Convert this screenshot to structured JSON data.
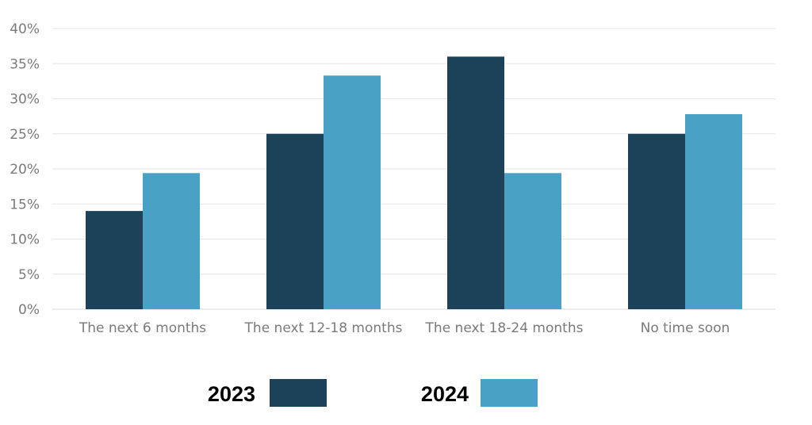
{
  "chart_data": {
    "type": "bar",
    "categories": [
      "The next 6 months",
      "The next 12-18 months",
      "The next 18-24 months",
      "No time soon"
    ],
    "series": [
      {
        "name": "2023",
        "values": [
          14,
          25,
          36,
          25
        ],
        "color": "#1c4259"
      },
      {
        "name": "2024",
        "values": [
          19.4,
          33.3,
          19.4,
          27.8
        ],
        "color": "#49a1c5"
      }
    ],
    "title": "",
    "xlabel": "",
    "ylabel": "",
    "ylim": [
      0,
      40
    ],
    "y_ticks": [
      "0%",
      "5%",
      "10%",
      "15%",
      "20%",
      "25%",
      "30%",
      "35%",
      "40%"
    ],
    "grid": true,
    "legend_position": "bottom"
  }
}
